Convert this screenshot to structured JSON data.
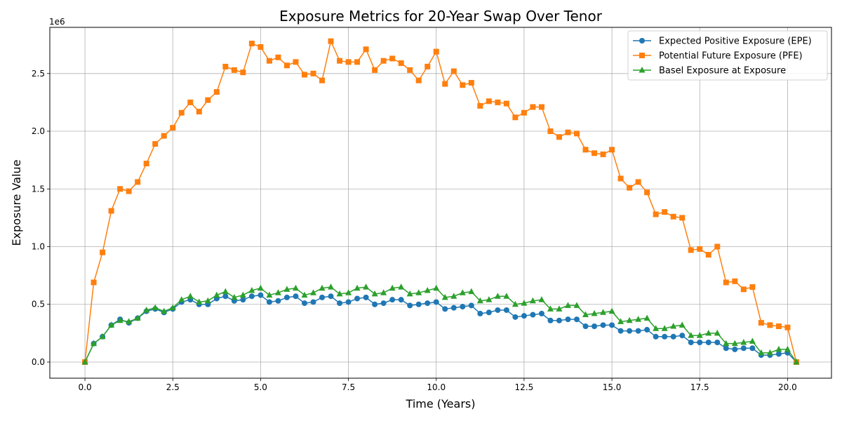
{
  "chart_data": {
    "type": "line",
    "title": "Exposure Metrics for 20-Year Swap Over Tenor",
    "xlabel": "Time (Years)",
    "ylabel": "Exposure Value",
    "y_scale_label": "1e6",
    "xlim": [
      -1.0,
      21.25
    ],
    "ylim": [
      -0.14,
      2.9
    ],
    "x_ticks": [
      0.0,
      2.5,
      5.0,
      7.5,
      10.0,
      12.5,
      15.0,
      17.5,
      20.0
    ],
    "x_tick_labels": [
      "0.0",
      "2.5",
      "5.0",
      "7.5",
      "10.0",
      "12.5",
      "15.0",
      "17.5",
      "20.0"
    ],
    "y_ticks": [
      0.0,
      0.5,
      1.0,
      1.5,
      2.0,
      2.5
    ],
    "y_tick_labels": [
      "0.0",
      "0.5",
      "1.0",
      "1.5",
      "2.0",
      "2.5"
    ],
    "grid": true,
    "legend_position": "top-right",
    "x": [
      0.0,
      0.25,
      0.5,
      0.75,
      1.0,
      1.25,
      1.5,
      1.75,
      2.0,
      2.25,
      2.5,
      2.75,
      3.0,
      3.25,
      3.5,
      3.75,
      4.0,
      4.25,
      4.5,
      4.75,
      5.0,
      5.25,
      5.5,
      5.75,
      6.0,
      6.25,
      6.5,
      6.75,
      7.0,
      7.25,
      7.5,
      7.75,
      8.0,
      8.25,
      8.5,
      8.75,
      9.0,
      9.25,
      9.5,
      9.75,
      10.0,
      10.25,
      10.5,
      10.75,
      11.0,
      11.25,
      11.5,
      11.75,
      12.0,
      12.25,
      12.5,
      12.75,
      13.0,
      13.25,
      13.5,
      13.75,
      14.0,
      14.25,
      14.5,
      14.75,
      15.0,
      15.25,
      15.5,
      15.75,
      16.0,
      16.25,
      16.5,
      16.75,
      17.0,
      17.25,
      17.5,
      17.75,
      18.0,
      18.25,
      18.5,
      18.75,
      19.0,
      19.25,
      19.5,
      19.75,
      20.0,
      20.25
    ],
    "series": [
      {
        "name": "Expected Positive Exposure (EPE)",
        "color": "#1f77b4",
        "marker": "circle",
        "values": [
          0.0,
          0.16,
          0.22,
          0.32,
          0.37,
          0.34,
          0.38,
          0.44,
          0.46,
          0.43,
          0.46,
          0.52,
          0.54,
          0.5,
          0.5,
          0.55,
          0.57,
          0.53,
          0.54,
          0.57,
          0.58,
          0.52,
          0.53,
          0.56,
          0.57,
          0.51,
          0.52,
          0.56,
          0.57,
          0.51,
          0.52,
          0.55,
          0.56,
          0.5,
          0.51,
          0.54,
          0.54,
          0.49,
          0.5,
          0.51,
          0.52,
          0.46,
          0.47,
          0.48,
          0.49,
          0.42,
          0.43,
          0.45,
          0.45,
          0.39,
          0.4,
          0.41,
          0.42,
          0.36,
          0.36,
          0.37,
          0.37,
          0.31,
          0.31,
          0.32,
          0.32,
          0.27,
          0.27,
          0.27,
          0.28,
          0.22,
          0.22,
          0.22,
          0.23,
          0.17,
          0.17,
          0.17,
          0.17,
          0.12,
          0.11,
          0.12,
          0.12,
          0.06,
          0.06,
          0.07,
          0.08,
          0.0
        ]
      },
      {
        "name": "Potential Future Exposure (PFE)",
        "color": "#ff7f0e",
        "marker": "square",
        "values": [
          0.0,
          0.69,
          0.95,
          1.31,
          1.5,
          1.48,
          1.56,
          1.72,
          1.89,
          1.96,
          2.03,
          2.16,
          2.25,
          2.17,
          2.27,
          2.34,
          2.56,
          2.53,
          2.51,
          2.76,
          2.73,
          2.61,
          2.64,
          2.57,
          2.6,
          2.49,
          2.5,
          2.44,
          2.78,
          2.61,
          2.6,
          2.6,
          2.71,
          2.53,
          2.61,
          2.63,
          2.59,
          2.53,
          2.44,
          2.56,
          2.69,
          2.41,
          2.52,
          2.4,
          2.42,
          2.22,
          2.26,
          2.25,
          2.24,
          2.12,
          2.16,
          2.21,
          2.21,
          2.0,
          1.95,
          1.99,
          1.98,
          1.84,
          1.81,
          1.8,
          1.84,
          1.59,
          1.51,
          1.56,
          1.47,
          1.28,
          1.3,
          1.26,
          1.25,
          0.97,
          0.98,
          0.93,
          1.0,
          0.69,
          0.7,
          0.63,
          0.65,
          0.34,
          0.32,
          0.31,
          0.3,
          0.0
        ]
      },
      {
        "name": "Basel Exposure at Exposure",
        "color": "#2ca02c",
        "marker": "triangle",
        "values": [
          0.0,
          0.16,
          0.22,
          0.32,
          0.36,
          0.35,
          0.38,
          0.45,
          0.47,
          0.44,
          0.47,
          0.54,
          0.57,
          0.52,
          0.53,
          0.58,
          0.61,
          0.56,
          0.58,
          0.62,
          0.64,
          0.58,
          0.6,
          0.63,
          0.64,
          0.58,
          0.6,
          0.64,
          0.65,
          0.59,
          0.6,
          0.64,
          0.65,
          0.59,
          0.6,
          0.64,
          0.65,
          0.59,
          0.6,
          0.62,
          0.64,
          0.56,
          0.57,
          0.6,
          0.61,
          0.53,
          0.54,
          0.57,
          0.57,
          0.5,
          0.51,
          0.53,
          0.54,
          0.46,
          0.46,
          0.49,
          0.49,
          0.41,
          0.42,
          0.43,
          0.44,
          0.35,
          0.36,
          0.37,
          0.38,
          0.29,
          0.29,
          0.31,
          0.32,
          0.23,
          0.23,
          0.25,
          0.25,
          0.16,
          0.16,
          0.17,
          0.18,
          0.08,
          0.08,
          0.11,
          0.11,
          0.0
        ]
      }
    ]
  }
}
